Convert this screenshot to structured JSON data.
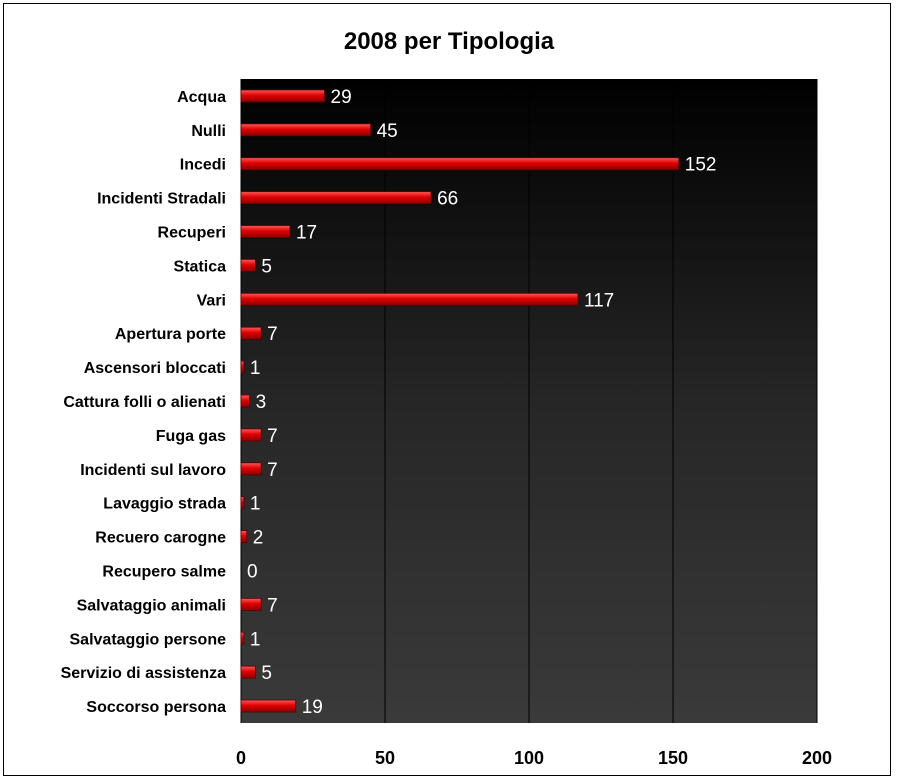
{
  "chart_data": {
    "type": "bar",
    "orientation": "horizontal",
    "title": "2008 per Tipologia",
    "xlabel": "",
    "ylabel": "",
    "xlim": [
      0,
      200
    ],
    "xticks": [
      "0",
      "50",
      "100",
      "150",
      "200"
    ],
    "grid": true,
    "legend": "none",
    "categories": [
      "Acqua",
      "Nulli",
      "Incedi",
      "Incidenti Stradali",
      "Recuperi",
      "Statica",
      "Vari",
      "Apertura porte",
      "Ascensori bloccati",
      "Cattura folli o alienati",
      "Fuga gas",
      "Incidenti sul lavoro",
      "Lavaggio strada",
      "Recuero carogne",
      "Recupero salme",
      "Salvataggio animali",
      "Salvataggio persone",
      "Servizio di assistenza",
      "Soccorso persona"
    ],
    "values": [
      29,
      45,
      152,
      66,
      17,
      5,
      117,
      7,
      1,
      3,
      7,
      7,
      1,
      2,
      0,
      7,
      1,
      5,
      19
    ],
    "colors": {
      "bar": "#cc0000",
      "plot_background": "#1e1e1e",
      "value_label": "#ffffff"
    }
  }
}
